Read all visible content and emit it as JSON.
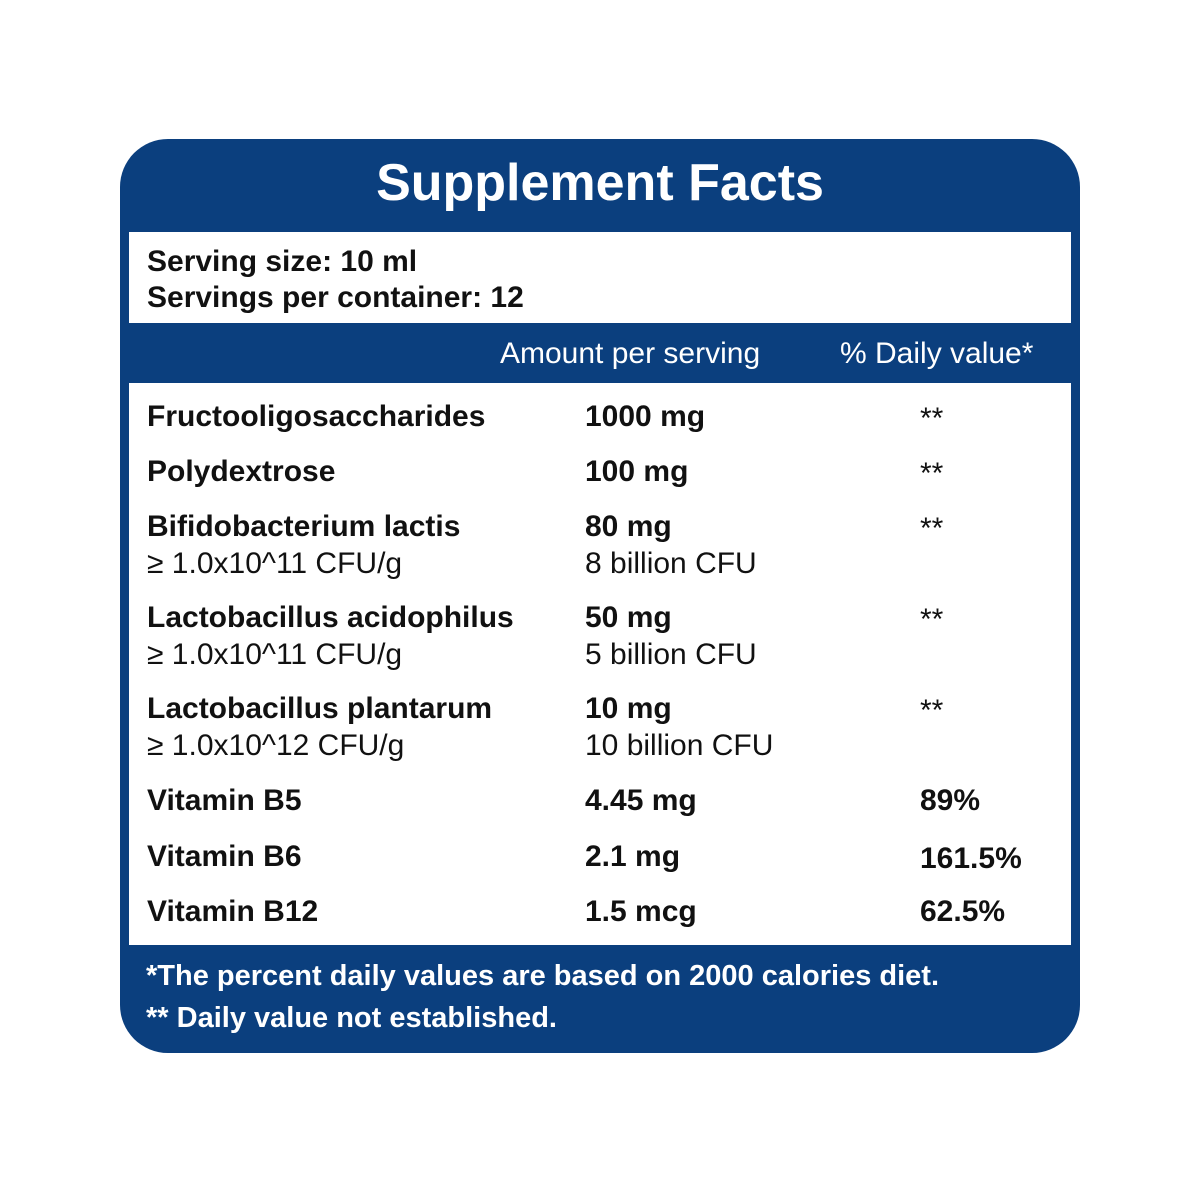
{
  "title": "Supplement Facts",
  "serving": {
    "size": "Serving size: 10 ml",
    "per_container": "Servings per container: 12"
  },
  "columns": {
    "amount": "Amount per serving",
    "daily_value": "% Daily value*"
  },
  "rows": [
    {
      "name": "Fructooligosaccharides",
      "sub": "",
      "amount": "1000 mg",
      "amount_sub": "",
      "dv": "**"
    },
    {
      "name": "Polydextrose",
      "sub": "",
      "amount": "100 mg",
      "amount_sub": "",
      "dv": "**"
    },
    {
      "name": "Bifidobacterium lactis",
      "sub": "≥ 1.0x10^11 CFU/g",
      "amount": "80 mg",
      "amount_sub": "8 billion CFU",
      "dv": "**"
    },
    {
      "name": "Lactobacillus acidophilus",
      "sub": "≥ 1.0x10^11 CFU/g",
      "amount": "50 mg",
      "amount_sub": "5 billion CFU",
      "dv": "**"
    },
    {
      "name": "Lactobacillus plantarum",
      "sub": "≥ 1.0x10^12 CFU/g",
      "amount": "10 mg",
      "amount_sub": "10 billion CFU",
      "dv": "**"
    },
    {
      "name": "Vitamin B5",
      "sub": "",
      "amount": "4.45 mg",
      "amount_sub": "",
      "dv": "89%"
    },
    {
      "name": "Vitamin B6",
      "sub": "",
      "amount": "2.1 mg",
      "amount_sub": "",
      "dv": "161.5%"
    },
    {
      "name": "Vitamin B12",
      "sub": "",
      "amount": "1.5 mcg",
      "amount_sub": "",
      "dv": "62.5%"
    }
  ],
  "footnotes": {
    "daily_basis": "*The percent daily values are based on 2000 calories diet.",
    "not_established": "** Daily value not established."
  },
  "colors": {
    "panel": "#0b3f7e",
    "text": "#111111",
    "background": "#ffffff"
  }
}
